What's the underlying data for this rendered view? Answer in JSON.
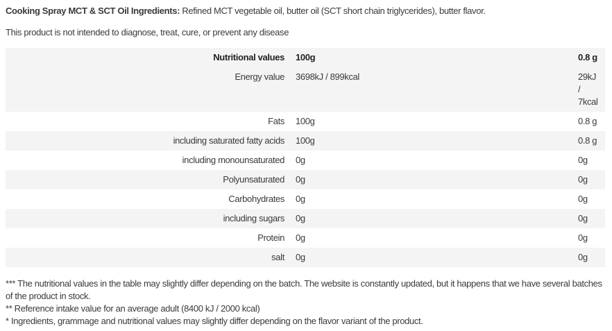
{
  "ingredients": {
    "label": "Cooking Spray MCT & SCT Oil Ingredients:",
    "text": " Refined MCT vegetable oil, butter oil (SCT short chain triglycerides), butter flavor."
  },
  "disclaimer": "This product is not intended to diagnose, treat, cure, or prevent any disease",
  "table": {
    "header": [
      "Nutritional values",
      "100g",
      "0.8 g"
    ],
    "rows": [
      [
        "Energy value",
        "3698kJ / 899kcal",
        "29kJ / 7kcal"
      ],
      [
        "Fats",
        "100g",
        "0.8 g"
      ],
      [
        "including saturated fatty acids",
        "100g",
        "0.8 g"
      ],
      [
        "including monounsaturated",
        "0g",
        "0g"
      ],
      [
        "Polyunsaturated",
        "0g",
        "0g"
      ],
      [
        "Carbohydrates",
        "0g",
        "0g"
      ],
      [
        "including sugars",
        "0g",
        "0g"
      ],
      [
        "Protein",
        "0g",
        "0g"
      ],
      [
        "salt",
        "0g",
        "0g"
      ]
    ]
  },
  "notes": [
    "*** The nutritional values in the table may slightly differ depending on the batch. The website is constantly updated, but it happens that we have several batches of the product in stock.",
    "** Reference intake value for an average adult (8400 kJ / 2000 kcal)",
    "* Ingredients, grammage and nutritional values may slightly differ depending on the flavor variant of the product."
  ]
}
